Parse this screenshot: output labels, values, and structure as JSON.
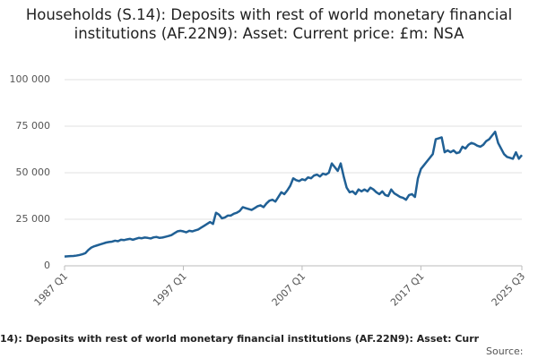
{
  "chart_data": {
    "type": "line",
    "title": "Households (S.14): Deposits with rest of world monetary financial institutions (AF.22N9): Asset: Current price: £m: NSA",
    "footer": "14): Deposits with rest of world monetary financial institutions (AF.22N9): Asset: Curr",
    "source": "Source:",
    "color": "#206095",
    "grid": true,
    "ylim": [
      0,
      100000
    ],
    "yticks": [
      0,
      {
        "value": 25000,
        "label": "25 000"
      },
      {
        "value": 50000,
        "label": "50 000"
      },
      {
        "value": 75000,
        "label": "75 000"
      },
      {
        "value": 100000,
        "label": "100 000"
      }
    ],
    "categories": [
      "1987 Q1",
      null,
      null,
      null,
      null,
      null,
      null,
      null,
      null,
      null,
      null,
      null,
      null,
      null,
      null,
      null,
      null,
      null,
      null,
      null,
      null,
      null,
      null,
      null,
      null,
      null,
      null,
      null,
      null,
      null,
      null,
      null,
      null,
      null,
      null,
      null,
      null,
      null,
      null,
      null,
      "1997 Q1",
      null,
      null,
      null,
      null,
      null,
      null,
      null,
      null,
      null,
      null,
      null,
      null,
      null,
      null,
      null,
      null,
      null,
      null,
      null,
      null,
      null,
      null,
      null,
      null,
      null,
      null,
      null,
      null,
      null,
      null,
      null,
      null,
      null,
      null,
      null,
      null,
      null,
      null,
      null,
      "2007 Q1",
      null,
      null,
      null,
      null,
      null,
      null,
      null,
      null,
      null,
      null,
      null,
      null,
      null,
      null,
      null,
      null,
      null,
      null,
      null,
      null,
      null,
      null,
      null,
      null,
      null,
      null,
      null,
      null,
      null,
      null,
      null,
      null,
      null,
      null,
      null,
      null,
      null,
      null,
      null,
      "2017 Q1",
      null,
      null,
      null,
      null,
      null,
      null,
      null,
      null,
      null,
      null,
      null,
      null,
      null,
      null,
      null,
      null,
      null,
      null,
      null,
      null,
      null,
      null,
      null,
      null,
      null,
      null,
      null,
      null,
      null,
      null,
      null,
      null,
      null,
      "2025 Q3"
    ],
    "values": [
      5000,
      5100,
      5200,
      5300,
      5500,
      5800,
      6200,
      6800,
      8500,
      9800,
      10500,
      11000,
      11500,
      12000,
      12500,
      12800,
      13000,
      13500,
      13200,
      14000,
      13800,
      14200,
      14500,
      14000,
      14500,
      15000,
      14800,
      15200,
      15000,
      14700,
      15300,
      15500,
      15000,
      15200,
      15600,
      16000,
      16500,
      17500,
      18500,
      18800,
      18500,
      18000,
      18800,
      18500,
      19000,
      19500,
      20500,
      21500,
      22500,
      23500,
      22500,
      28500,
      27500,
      25500,
      26000,
      27000,
      27000,
      28000,
      28500,
      29500,
      31500,
      31000,
      30500,
      30000,
      31000,
      32000,
      32500,
      31500,
      33500,
      35000,
      35500,
      34500,
      37000,
      39500,
      38500,
      40500,
      43000,
      47000,
      46000,
      45500,
      46500,
      46000,
      47500,
      47000,
      48500,
      49000,
      48000,
      49500,
      49000,
      50000,
      55000,
      53000,
      51000,
      55000,
      48000,
      42000,
      39500,
      40000,
      38500,
      41000,
      40000,
      41000,
      40000,
      42000,
      41000,
      39500,
      38500,
      40000,
      38000,
      37500,
      41000,
      39000,
      38000,
      37000,
      36500,
      35500,
      38000,
      38500,
      37000,
      47000,
      52000,
      54000,
      56000,
      58000,
      60000,
      68000,
      68500,
      69000,
      61000,
      62000,
      61000,
      62000,
      60500,
      61000,
      64000,
      63000,
      65000,
      66000,
      65500,
      64500,
      64000,
      65000,
      67000,
      68000,
      70000,
      72000,
      66000,
      63000,
      60000,
      58500,
      58000,
      57500,
      61000,
      57500,
      59500
    ]
  }
}
